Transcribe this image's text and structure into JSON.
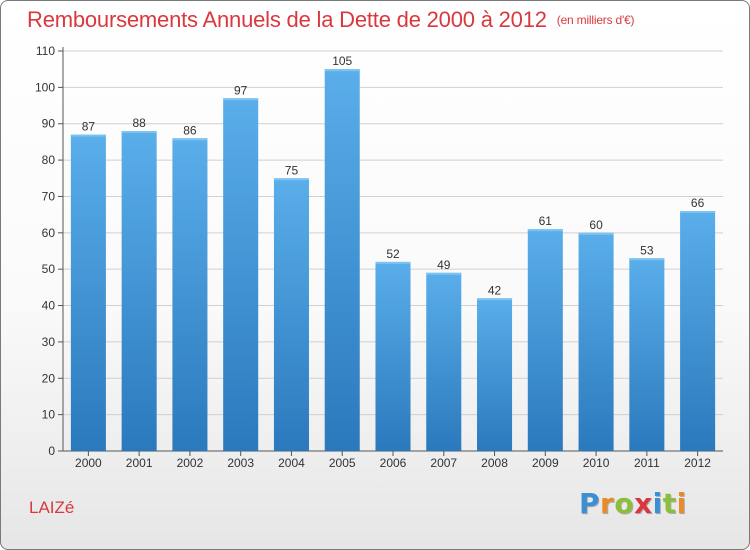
{
  "header": {
    "title": "Remboursements Annuels de la Dette de 2000 à 2012",
    "subtitle": "(en milliers d'€)"
  },
  "footer": {
    "place": "LAIZé",
    "logo": "Proxiti"
  },
  "colors": {
    "title": "#d9383e",
    "bar_top": "#5aaeea",
    "bar_bottom": "#2a79bd",
    "grid": "#d0d0d0"
  },
  "chart_data": {
    "type": "bar",
    "title": "Remboursements Annuels de la Dette de 2000 à 2012",
    "subtitle": "(en milliers d'€)",
    "xlabel": "",
    "ylabel": "",
    "categories": [
      "2000",
      "2001",
      "2002",
      "2003",
      "2004",
      "2005",
      "2006",
      "2007",
      "2008",
      "2009",
      "2010",
      "2011",
      "2012"
    ],
    "values": [
      87,
      88,
      86,
      97,
      75,
      105,
      52,
      49,
      42,
      61,
      60,
      53,
      66
    ],
    "ylim": [
      0,
      110
    ],
    "yticks": [
      0,
      10,
      20,
      30,
      40,
      50,
      60,
      70,
      80,
      90,
      100,
      110
    ],
    "grid": true,
    "legend": "none"
  }
}
